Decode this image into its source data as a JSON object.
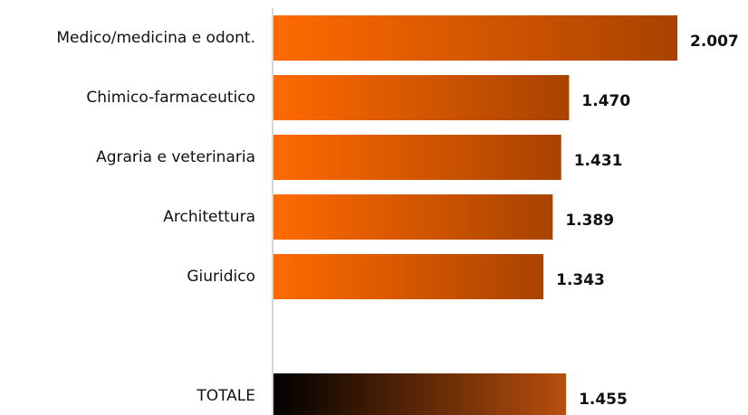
{
  "chart_data": {
    "type": "hbar",
    "categories": [
      "Medico/medicina e odont.",
      "Chimico-farmaceutico",
      "Agraria e veterinaria",
      "Architettura",
      "Giuridico",
      null,
      "TOTALE"
    ],
    "values": [
      2007,
      1470,
      1431,
      1389,
      1343,
      null,
      1455
    ],
    "value_labels": [
      "2.007",
      "1.470",
      "1.431",
      "1.389",
      "1.343",
      null,
      "1.455"
    ],
    "gradient": [
      "#ff6a00",
      "#a84300"
    ],
    "total_gradient": [
      "#000000",
      "#b84e0c"
    ],
    "xlim": [
      0,
      2200
    ]
  }
}
